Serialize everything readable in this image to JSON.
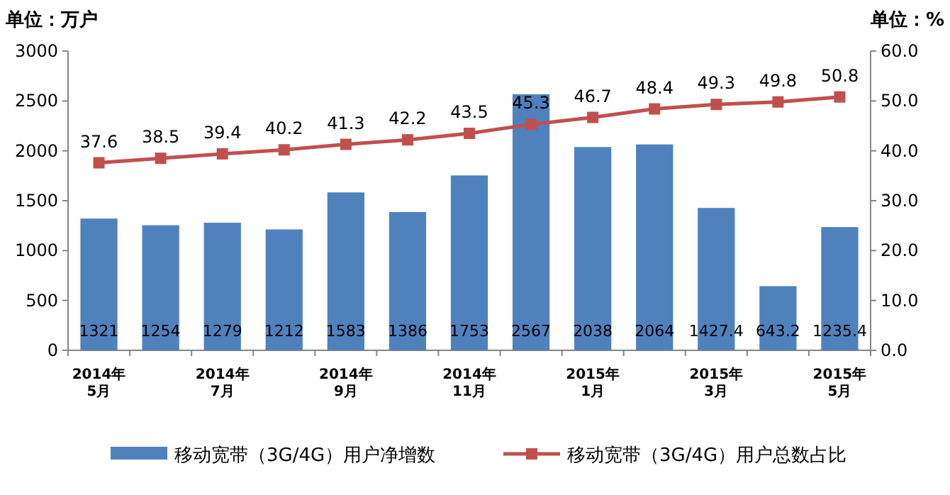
{
  "chart_data": {
    "type": "bar",
    "ylabel": "单位：万户",
    "y2label": "单位：%",
    "categories": [
      "2014年\n5月",
      null,
      "2014年\n7月",
      null,
      "2014年\n9月",
      null,
      "2014年\n11月",
      null,
      "2015年\n1月",
      null,
      "2015年\n3月",
      null,
      "2015年\n5月"
    ],
    "series": [
      {
        "name": "移动宽带（3G/4G）用户净增数",
        "color": "#4f81bd",
        "values": [
          1321,
          1254,
          1279,
          1212,
          1583,
          1386,
          1753,
          2567,
          2038,
          2064,
          1427.4,
          643.2,
          1235.4
        ]
      },
      {
        "name": "移动宽带（3G/4G）用户总数占比",
        "type": "line",
        "axis": "y2",
        "color": "#c0504d",
        "marker": "square",
        "values": [
          37.6,
          38.5,
          39.4,
          40.2,
          41.3,
          42.2,
          43.5,
          45.3,
          46.7,
          48.4,
          49.3,
          49.8,
          50.8
        ]
      }
    ],
    "ylim": [
      0,
      3000
    ],
    "yticks": [
      0,
      500,
      1000,
      1500,
      2000,
      2500,
      3000
    ],
    "y2lim": [
      0,
      60
    ],
    "y2ticks": [
      {
        "value": 0,
        "label": "0.0"
      },
      {
        "value": 10,
        "label": "10.0"
      },
      {
        "value": 20,
        "label": "20.0"
      },
      {
        "value": 30,
        "label": "30.0"
      },
      {
        "value": 40,
        "label": "40.0"
      },
      {
        "value": 50,
        "label": "50.0"
      },
      {
        "value": 60,
        "label": "60.0"
      }
    ],
    "data_labels": true,
    "legend": "bottom",
    "grid": false
  }
}
